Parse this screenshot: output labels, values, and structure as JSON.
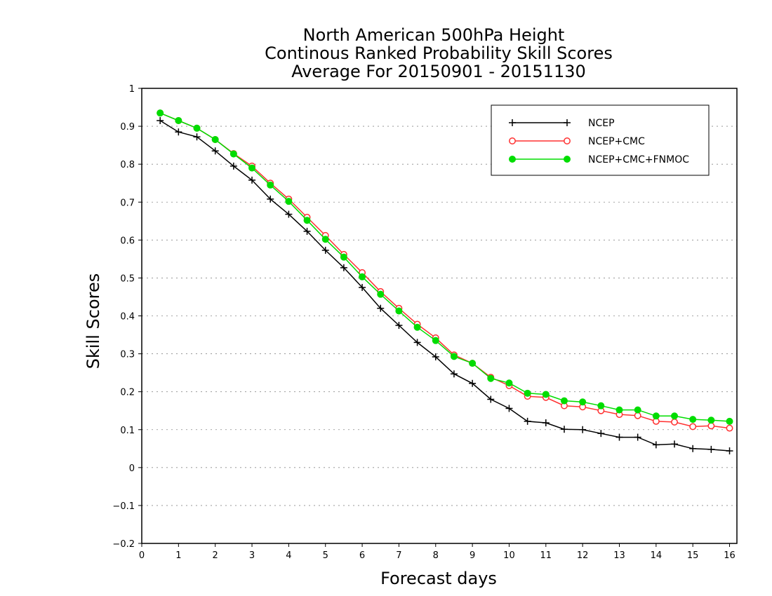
{
  "chart_data": {
    "type": "line",
    "title_lines": [
      "North American 500hPa Height",
      "Continous Ranked Probability Skill Scores",
      "Average For 20150901 - 20151130"
    ],
    "xlabel": "Forecast days",
    "ylabel": "Skill Scores",
    "xlim": [
      0,
      16.2
    ],
    "ylim": [
      -0.2,
      1
    ],
    "xticks": [
      "0",
      "1",
      "2",
      "3",
      "4",
      "5",
      "6",
      "7",
      "8",
      "9",
      "10",
      "11",
      "12",
      "13",
      "14",
      "15",
      "16"
    ],
    "yticks": [
      "-0.2",
      "-0.1",
      "0",
      "0.1",
      "0.2",
      "0.3",
      "0.4",
      "0.5",
      "0.6",
      "0.7",
      "0.8",
      "0.9",
      "1"
    ],
    "grid": "horizontal dotted",
    "legend_position": "top-right",
    "x": [
      0.5,
      1,
      1.5,
      2,
      2.5,
      3,
      3.5,
      4,
      4.5,
      5,
      5.5,
      6,
      6.5,
      7,
      7.5,
      8,
      8.5,
      9,
      9.5,
      10,
      10.5,
      11,
      11.5,
      12,
      12.5,
      13,
      13.5,
      14,
      14.5,
      15,
      15.5,
      16
    ],
    "series": [
      {
        "name": "NCEP",
        "color": "#000000",
        "marker": "plus",
        "values": [
          0.915,
          0.885,
          0.872,
          0.835,
          0.795,
          0.758,
          0.708,
          0.668,
          0.623,
          0.573,
          0.527,
          0.475,
          0.42,
          0.375,
          0.33,
          0.292,
          0.247,
          0.222,
          0.18,
          0.156,
          0.122,
          0.118,
          0.101,
          0.1,
          0.09,
          0.08,
          0.08,
          0.06,
          0.062,
          0.05,
          0.048,
          0.044
        ]
      },
      {
        "name": "NCEP+CMC",
        "color": "#ff3030",
        "marker": "open-circle",
        "values": [
          0.935,
          0.915,
          0.895,
          0.865,
          0.828,
          0.795,
          0.75,
          0.708,
          0.66,
          0.612,
          0.562,
          0.514,
          0.464,
          0.42,
          0.378,
          0.342,
          0.297,
          0.275,
          0.238,
          0.216,
          0.188,
          0.185,
          0.163,
          0.16,
          0.15,
          0.14,
          0.137,
          0.122,
          0.12,
          0.108,
          0.11,
          0.104
        ]
      },
      {
        "name": "NCEP+CMC+FNMOC",
        "color": "#00dd00",
        "marker": "filled-circle",
        "values": [
          0.935,
          0.915,
          0.895,
          0.865,
          0.827,
          0.79,
          0.745,
          0.702,
          0.652,
          0.602,
          0.555,
          0.503,
          0.457,
          0.413,
          0.37,
          0.335,
          0.293,
          0.275,
          0.235,
          0.223,
          0.196,
          0.193,
          0.176,
          0.173,
          0.163,
          0.152,
          0.152,
          0.136,
          0.136,
          0.127,
          0.125,
          0.122
        ]
      }
    ]
  }
}
